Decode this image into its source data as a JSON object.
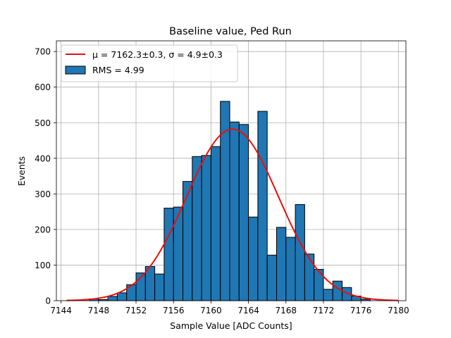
{
  "chart_data": {
    "type": "bar",
    "title": "Baseline value, Ped Run",
    "xlabel": "Sample Value [ADC Counts]",
    "ylabel": "Events",
    "xlim": [
      7143.5,
      7180.8
    ],
    "ylim": [
      0,
      730
    ],
    "grid": true,
    "legend_position": "top-left",
    "x_ticks": [
      7144,
      7148,
      7152,
      7156,
      7160,
      7164,
      7168,
      7172,
      7176,
      7180
    ],
    "y_ticks": [
      0,
      100,
      200,
      300,
      400,
      500,
      600,
      700
    ],
    "histogram": {
      "name": "RMS = 4.99",
      "color": "#1f77b4",
      "edge_color": "#000000",
      "bin_edges": [
        7147,
        7148,
        7149,
        7150,
        7151,
        7152,
        7153,
        7154,
        7155,
        7156,
        7157,
        7158,
        7159,
        7160,
        7161,
        7162,
        7163,
        7164,
        7165,
        7166,
        7167,
        7168,
        7169,
        7170,
        7171,
        7172,
        7173,
        7174,
        7175,
        7176,
        7177
      ],
      "counts": [
        5,
        3,
        12,
        22,
        45,
        78,
        96,
        75,
        260,
        263,
        335,
        405,
        408,
        433,
        560,
        502,
        495,
        235,
        532,
        128,
        206,
        178,
        270,
        131,
        88,
        32,
        55,
        37,
        13,
        4
      ]
    },
    "fit": {
      "name_prefix": "μ = 7162.3±0.3, σ = 4.9±0.3",
      "type": "gaussian",
      "color": "#e8100c",
      "mu": 7162.3,
      "sigma": 4.9,
      "amplitude": 482,
      "x_range": [
        7144.6,
        7180
      ]
    },
    "legend": [
      {
        "label": "μ = 7162.3±0.3, σ = 4.9±0.3",
        "kind": "line"
      },
      {
        "label": "RMS = 4.99",
        "kind": "patch"
      }
    ]
  }
}
